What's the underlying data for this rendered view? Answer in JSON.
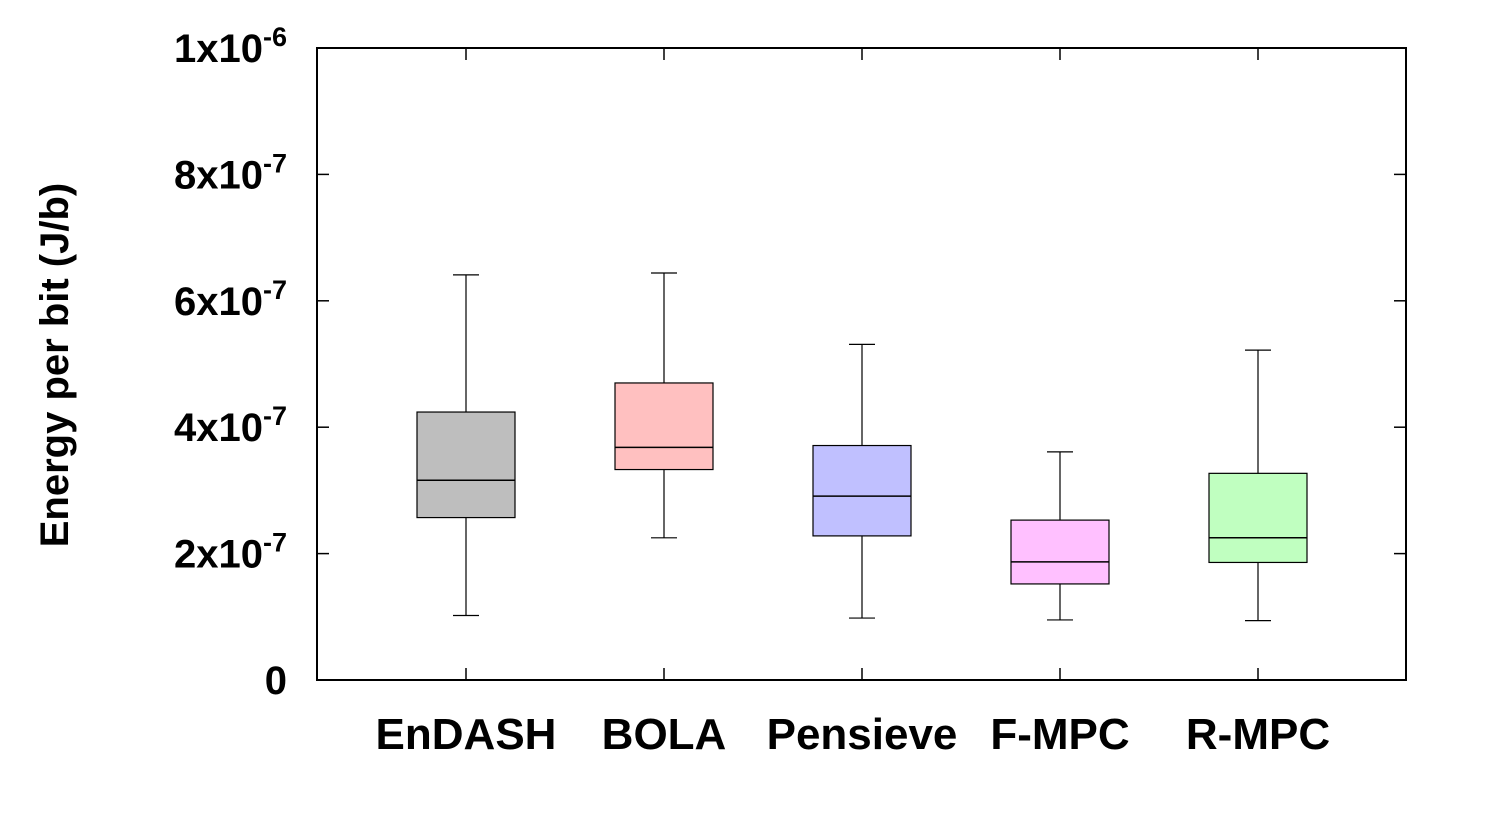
{
  "chart_data": {
    "type": "box",
    "title": "",
    "xlabel": "",
    "ylabel": "Energy per bit (J/b)",
    "ylim": [
      0,
      1e-06
    ],
    "yticks": [
      {
        "value": 0,
        "mantissa": "0",
        "exponent": ""
      },
      {
        "value": 2e-07,
        "mantissa": "2x10",
        "exponent": "-7"
      },
      {
        "value": 4e-07,
        "mantissa": "4x10",
        "exponent": "-7"
      },
      {
        "value": 6e-07,
        "mantissa": "6x10",
        "exponent": "-7"
      },
      {
        "value": 8e-07,
        "mantissa": "8x10",
        "exponent": "-7"
      },
      {
        "value": 1e-06,
        "mantissa": "1x10",
        "exponent": "-6"
      }
    ],
    "grid": false,
    "categories": [
      "EnDASH",
      "BOLA",
      "Pensieve",
      "F-MPC",
      "R-MPC"
    ],
    "boxes": [
      {
        "category": "EnDASH",
        "color": "#bebebe",
        "whisker_low": 1.02e-07,
        "q1": 2.57e-07,
        "median": 3.16e-07,
        "q3": 4.24e-07,
        "whisker_high": 6.41e-07
      },
      {
        "category": "BOLA",
        "color": "#ffc0c0",
        "whisker_low": 2.25e-07,
        "q1": 3.33e-07,
        "median": 3.68e-07,
        "q3": 4.7e-07,
        "whisker_high": 6.44e-07
      },
      {
        "category": "Pensieve",
        "color": "#c0c0ff",
        "whisker_low": 9.8e-08,
        "q1": 2.28e-07,
        "median": 2.91e-07,
        "q3": 3.71e-07,
        "whisker_high": 5.31e-07
      },
      {
        "category": "F-MPC",
        "color": "#ffc0ff",
        "whisker_low": 9.5e-08,
        "q1": 1.52e-07,
        "median": 1.87e-07,
        "q3": 2.53e-07,
        "whisker_high": 3.61e-07
      },
      {
        "category": "R-MPC",
        "color": "#c0ffc0",
        "whisker_low": 9.4e-08,
        "q1": 1.86e-07,
        "median": 2.25e-07,
        "q3": 3.27e-07,
        "whisker_high": 5.22e-07
      }
    ]
  }
}
